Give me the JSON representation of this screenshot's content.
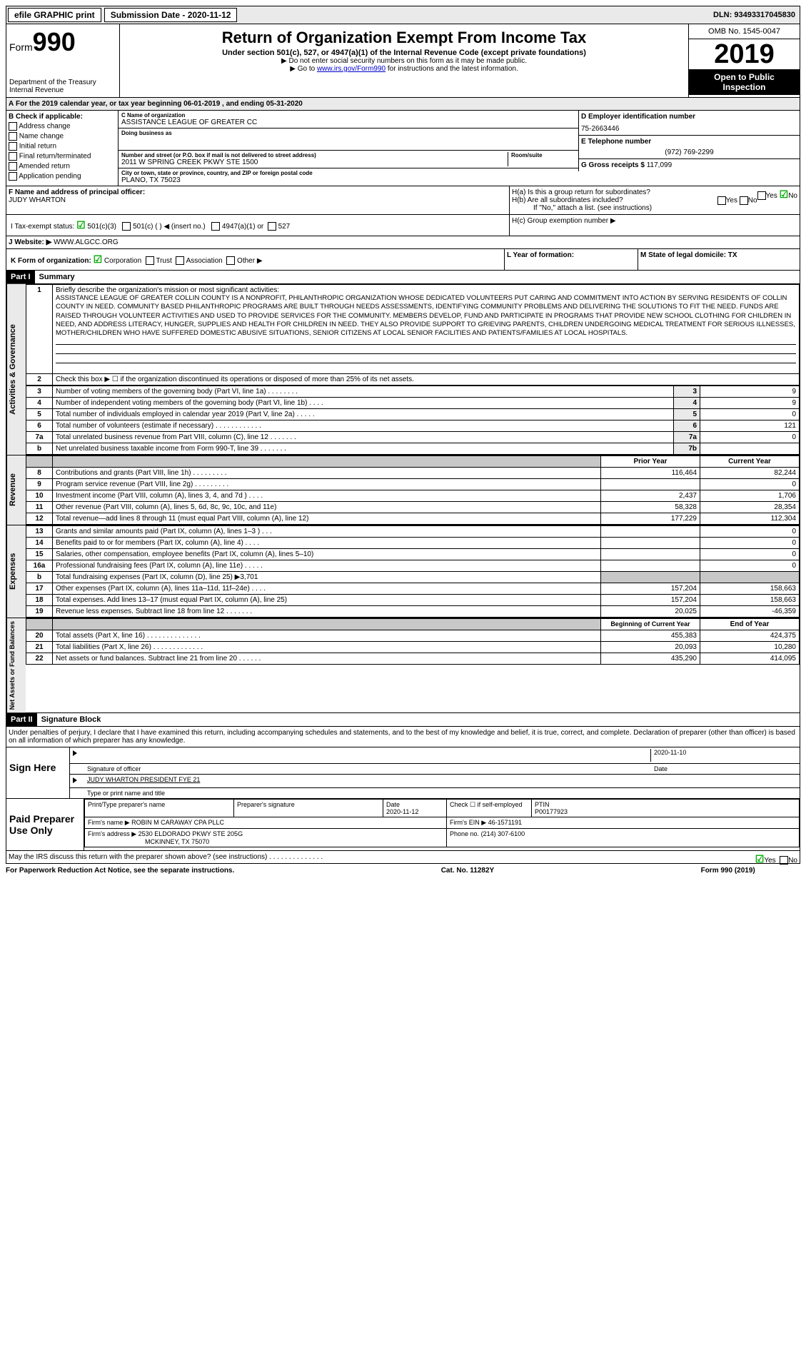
{
  "topbar": {
    "efile": "efile GRAPHIC print",
    "submission_label": "Submission Date - 2020-11-12",
    "dln": "DLN: 93493317045830"
  },
  "header": {
    "form_prefix": "Form",
    "form_num": "990",
    "dept": "Department of the Treasury",
    "irs": "Internal Revenue",
    "title": "Return of Organization Exempt From Income Tax",
    "subtitle": "Under section 501(c), 527, or 4947(a)(1) of the Internal Revenue Code (except private foundations)",
    "note1": "▶ Do not enter social security numbers on this form as it may be made public.",
    "note2_pre": "▶ Go to ",
    "note2_link": "www.irs.gov/Form990",
    "note2_post": " for instructions and the latest information.",
    "omb": "OMB No. 1545-0047",
    "year": "2019",
    "inspection": "Open to Public Inspection"
  },
  "period": "For the 2019 calendar year, or tax year beginning 06-01-2019   , and ending 05-31-2020",
  "section_a_prefix": "A",
  "section_b": {
    "label": "B Check if applicable:",
    "items": [
      "Address change",
      "Name change",
      "Initial return",
      "Final return/terminated",
      "Amended return",
      "Application pending"
    ]
  },
  "section_c": {
    "name_label": "C Name of organization",
    "name": "ASSISTANCE LEAGUE OF GREATER CC",
    "dba_label": "Doing business as",
    "addr_label": "Number and street (or P.O. box if mail is not delivered to street address)",
    "room_label": "Room/suite",
    "addr": "2011 W SPRING CREEK PKWY STE 1500",
    "city_label": "City or town, state or province, country, and ZIP or foreign postal code",
    "city": "PLANO, TX  75023"
  },
  "section_d": {
    "label": "D Employer identification number",
    "ein": "75-2663446"
  },
  "section_e": {
    "label": "E Telephone number",
    "phone": "(972) 769-2299"
  },
  "section_g": {
    "label": "G Gross receipts $",
    "value": "117,099"
  },
  "section_f": {
    "label": "F  Name and address of principal officer:",
    "name": "JUDY WHARTON"
  },
  "section_h": {
    "ha": "H(a)  Is this a group return for subordinates?",
    "hb": "H(b)  Are all subordinates included?",
    "hb_note": "If \"No,\" attach a list. (see instructions)",
    "hc": "H(c)  Group exemption number ▶",
    "yes": "Yes",
    "no": "No"
  },
  "section_i": {
    "label": "I   Tax-exempt status:",
    "opt1": "501(c)(3)",
    "opt2": "501(c) (   ) ◀ (insert no.)",
    "opt3": "4947(a)(1) or",
    "opt4": "527"
  },
  "section_j": {
    "label": "J   Website: ▶",
    "url": "WWW.ALGCC.ORG"
  },
  "section_k": {
    "label": "K Form of organization:",
    "corp": "Corporation",
    "trust": "Trust",
    "assoc": "Association",
    "other": "Other ▶"
  },
  "section_l": "L Year of formation:",
  "section_m": "M State of legal domicile: TX",
  "part1": {
    "header": "Part I",
    "title": "Summary",
    "label_activities": "Activities & Governance",
    "label_revenue": "Revenue",
    "label_expenses": "Expenses",
    "label_netassets": "Net Assets or Fund Balances",
    "line1_label": "Briefly describe the organization's mission or most significant activities:",
    "mission": "ASSISTANCE LEAGUE OF GREATER COLLIN COUNTY IS A NONPROFIT, PHILANTHROPIC ORGANIZATION WHOSE DEDICATED VOLUNTEERS PUT CARING AND COMMITMENT INTO ACTION BY SERVING RESIDENTS OF COLLIN COUNTY IN NEED. COMMUNITY BASED PHILANTHROPIC PROGRAMS ARE BUILT THROUGH NEEDS ASSESSMENTS, IDENTIFYING COMMUNITY PROBLEMS AND DELIVERING THE SOLUTIONS TO FIT THE NEED. FUNDS ARE RAISED THROUGH VOLUNTEER ACTIVITIES AND USED TO PROVIDE SERVICES FOR THE COMMUNITY. MEMBERS DEVELOP, FUND AND PARTICIPATE IN PROGRAMS THAT PROVIDE NEW SCHOOL CLOTHING FOR CHILDREN IN NEED, AND ADDRESS LITERACY, HUNGER, SUPPLIES AND HEALTH FOR CHILDREN IN NEED. THEY ALSO PROVIDE SUPPORT TO GRIEVING PARENTS, CHILDREN UNDERGOING MEDICAL TREATMENT FOR SERIOUS ILLNESSES, MOTHER/CHILDREN WHO HAVE SUFFERED DOMESTIC ABUSIVE SITUATIONS, SENIOR CITIZENS AT LOCAL SENIOR FACILITIES AND PATIENTS/FAMILIES AT LOCAL HOSPITALS.",
    "line2": "Check this box ▶ ☐ if the organization discontinued its operations or disposed of more than 25% of its net assets.",
    "gov_rows": [
      {
        "n": "3",
        "desc": "Number of voting members of the governing body (Part VI, line 1a)  .   .   .   .   .   .   .   .",
        "box": "3",
        "val": "9"
      },
      {
        "n": "4",
        "desc": "Number of independent voting members of the governing body (Part VI, line 1b)  .   .   .   .",
        "box": "4",
        "val": "9"
      },
      {
        "n": "5",
        "desc": "Total number of individuals employed in calendar year 2019 (Part V, line 2a)  .   .   .   .   .",
        "box": "5",
        "val": "0"
      },
      {
        "n": "6",
        "desc": "Total number of volunteers (estimate if necessary)   .   .   .   .   .   .   .   .   .   .   .   .",
        "box": "6",
        "val": "121"
      },
      {
        "n": "7a",
        "desc": "Total unrelated business revenue from Part VIII, column (C), line 12  .   .   .   .   .   .   .",
        "box": "7a",
        "val": "0"
      },
      {
        "n": "b",
        "desc": "Net unrelated business taxable income from Form 990-T, line 39    .   .   .   .   .   .   .",
        "box": "7b",
        "val": ""
      }
    ],
    "col_prior": "Prior Year",
    "col_current": "Current Year",
    "rev_rows": [
      {
        "n": "8",
        "desc": "Contributions and grants (Part VIII, line 1h)   .   .   .   .   .   .   .   .   .",
        "p": "116,464",
        "c": "82,244"
      },
      {
        "n": "9",
        "desc": "Program service revenue (Part VIII, line 2g)   .   .   .   .   .   .   .   .   .",
        "p": "",
        "c": "0"
      },
      {
        "n": "10",
        "desc": "Investment income (Part VIII, column (A), lines 3, 4, and 7d )   .   .   .   .",
        "p": "2,437",
        "c": "1,706"
      },
      {
        "n": "11",
        "desc": "Other revenue (Part VIII, column (A), lines 5, 6d, 8c, 9c, 10c, and 11e)",
        "p": "58,328",
        "c": "28,354"
      },
      {
        "n": "12",
        "desc": "Total revenue—add lines 8 through 11 (must equal Part VIII, column (A), line 12)",
        "p": "177,229",
        "c": "112,304"
      }
    ],
    "exp_rows": [
      {
        "n": "13",
        "desc": "Grants and similar amounts paid (Part IX, column (A), lines 1–3 )   .   .   .",
        "p": "",
        "c": "0"
      },
      {
        "n": "14",
        "desc": "Benefits paid to or for members (Part IX, column (A), line 4)   .   .   .   .",
        "p": "",
        "c": "0"
      },
      {
        "n": "15",
        "desc": "Salaries, other compensation, employee benefits (Part IX, column (A), lines 5–10)",
        "p": "",
        "c": "0"
      },
      {
        "n": "16a",
        "desc": "Professional fundraising fees (Part IX, column (A), line 11e)  .   .   .   .   .",
        "p": "",
        "c": "0"
      },
      {
        "n": "b",
        "desc": "Total fundraising expenses (Part IX, column (D), line 25) ▶3,701",
        "p": "GRAY",
        "c": "GRAY"
      },
      {
        "n": "17",
        "desc": "Other expenses (Part IX, column (A), lines 11a–11d, 11f–24e)   .   .   .   .",
        "p": "157,204",
        "c": "158,663"
      },
      {
        "n": "18",
        "desc": "Total expenses. Add lines 13–17 (must equal Part IX, column (A), line 25)",
        "p": "157,204",
        "c": "158,663"
      },
      {
        "n": "19",
        "desc": "Revenue less expenses. Subtract line 18 from line 12 .   .   .   .   .   .   .",
        "p": "20,025",
        "c": "-46,359"
      }
    ],
    "col_begin": "Beginning of Current Year",
    "col_end": "End of Year",
    "na_rows": [
      {
        "n": "20",
        "desc": "Total assets (Part X, line 16)  .   .   .   .   .   .   .   .   .   .   .   .   .   .",
        "p": "455,383",
        "c": "424,375"
      },
      {
        "n": "21",
        "desc": "Total liabilities (Part X, line 26)  .   .   .   .   .   .   .   .   .   .   .   .   .",
        "p": "20,093",
        "c": "10,280"
      },
      {
        "n": "22",
        "desc": "Net assets or fund balances. Subtract line 21 from line 20 .   .   .   .   .   .",
        "p": "435,290",
        "c": "414,095"
      }
    ]
  },
  "part2": {
    "header": "Part II",
    "title": "Signature Block",
    "perjury": "Under penalties of perjury, I declare that I have examined this return, including accompanying schedules and statements, and to the best of my knowledge and belief, it is true, correct, and complete. Declaration of preparer (other than officer) is based on all information of which preparer has any knowledge.",
    "sign_here": "Sign Here",
    "sig_officer": "Signature of officer",
    "sig_date": "2020-11-10",
    "date_label": "Date",
    "officer_name": "JUDY WHARTON  PRESIDENT FYE 21",
    "officer_sub": "Type or print name and title",
    "paid": "Paid Preparer Use Only",
    "prep_name_label": "Print/Type preparer's name",
    "prep_sig_label": "Preparer's signature",
    "prep_date_label": "Date",
    "prep_date": "2020-11-12",
    "check_self": "Check ☐ if self-employed",
    "ptin_label": "PTIN",
    "ptin": "P00177923",
    "firm_name_label": "Firm's name     ▶",
    "firm_name": "ROBIN M CARAWAY CPA PLLC",
    "firm_ein_label": "Firm's EIN ▶",
    "firm_ein": "46-1571191",
    "firm_addr_label": "Firm's address ▶",
    "firm_addr1": "2530 ELDORADO PKWY STE 205G",
    "firm_addr2": "MCKINNEY, TX  75070",
    "firm_phone_label": "Phone no.",
    "firm_phone": "(214) 307-6100",
    "discuss": "May the IRS discuss this return with the preparer shown above? (see instructions)   .   .   .   .   .   .   .   .   .   .   .   .   .   .",
    "yes": "Yes",
    "no": "No"
  },
  "footer": {
    "pra": "For Paperwork Reduction Act Notice, see the separate instructions.",
    "cat": "Cat. No. 11282Y",
    "form": "Form 990 (2019)"
  }
}
